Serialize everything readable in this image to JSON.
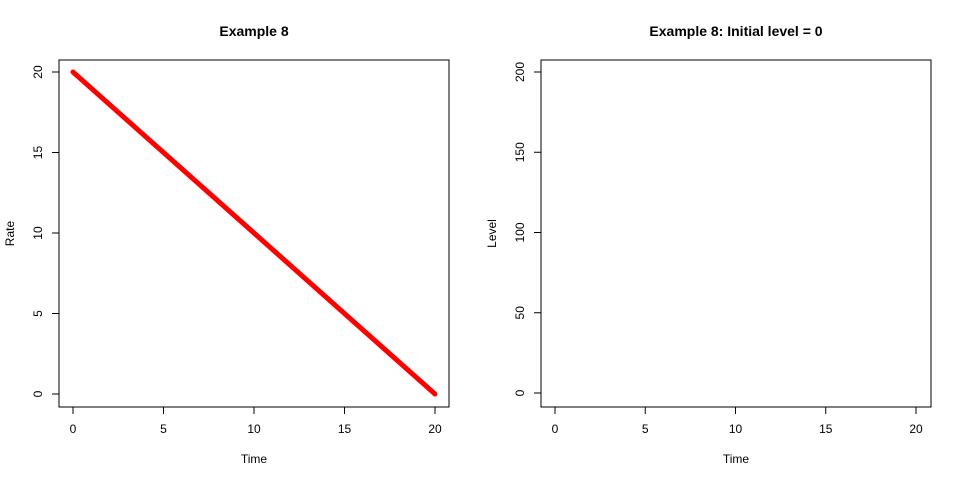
{
  "chart_data": [
    {
      "type": "line",
      "title": "Example 8",
      "xlabel": "Time",
      "ylabel": "Rate",
      "xlim": [
        0,
        20
      ],
      "ylim": [
        0,
        20
      ],
      "xticks": [
        0,
        5,
        10,
        15,
        20
      ],
      "yticks": [
        0,
        5,
        10,
        15,
        20
      ],
      "grid": false,
      "series": [
        {
          "name": "Rate",
          "color": "#ff0000",
          "x": [
            0,
            20
          ],
          "y": [
            20,
            0
          ]
        }
      ]
    },
    {
      "type": "line",
      "title": "Example 8: Initial level = 0",
      "xlabel": "Time",
      "ylabel": "Level",
      "xlim": [
        0,
        20
      ],
      "ylim": [
        0,
        200
      ],
      "xticks": [
        0,
        5,
        10,
        15,
        20
      ],
      "yticks": [
        0,
        50,
        100,
        150,
        200
      ],
      "grid": false,
      "series": []
    }
  ]
}
